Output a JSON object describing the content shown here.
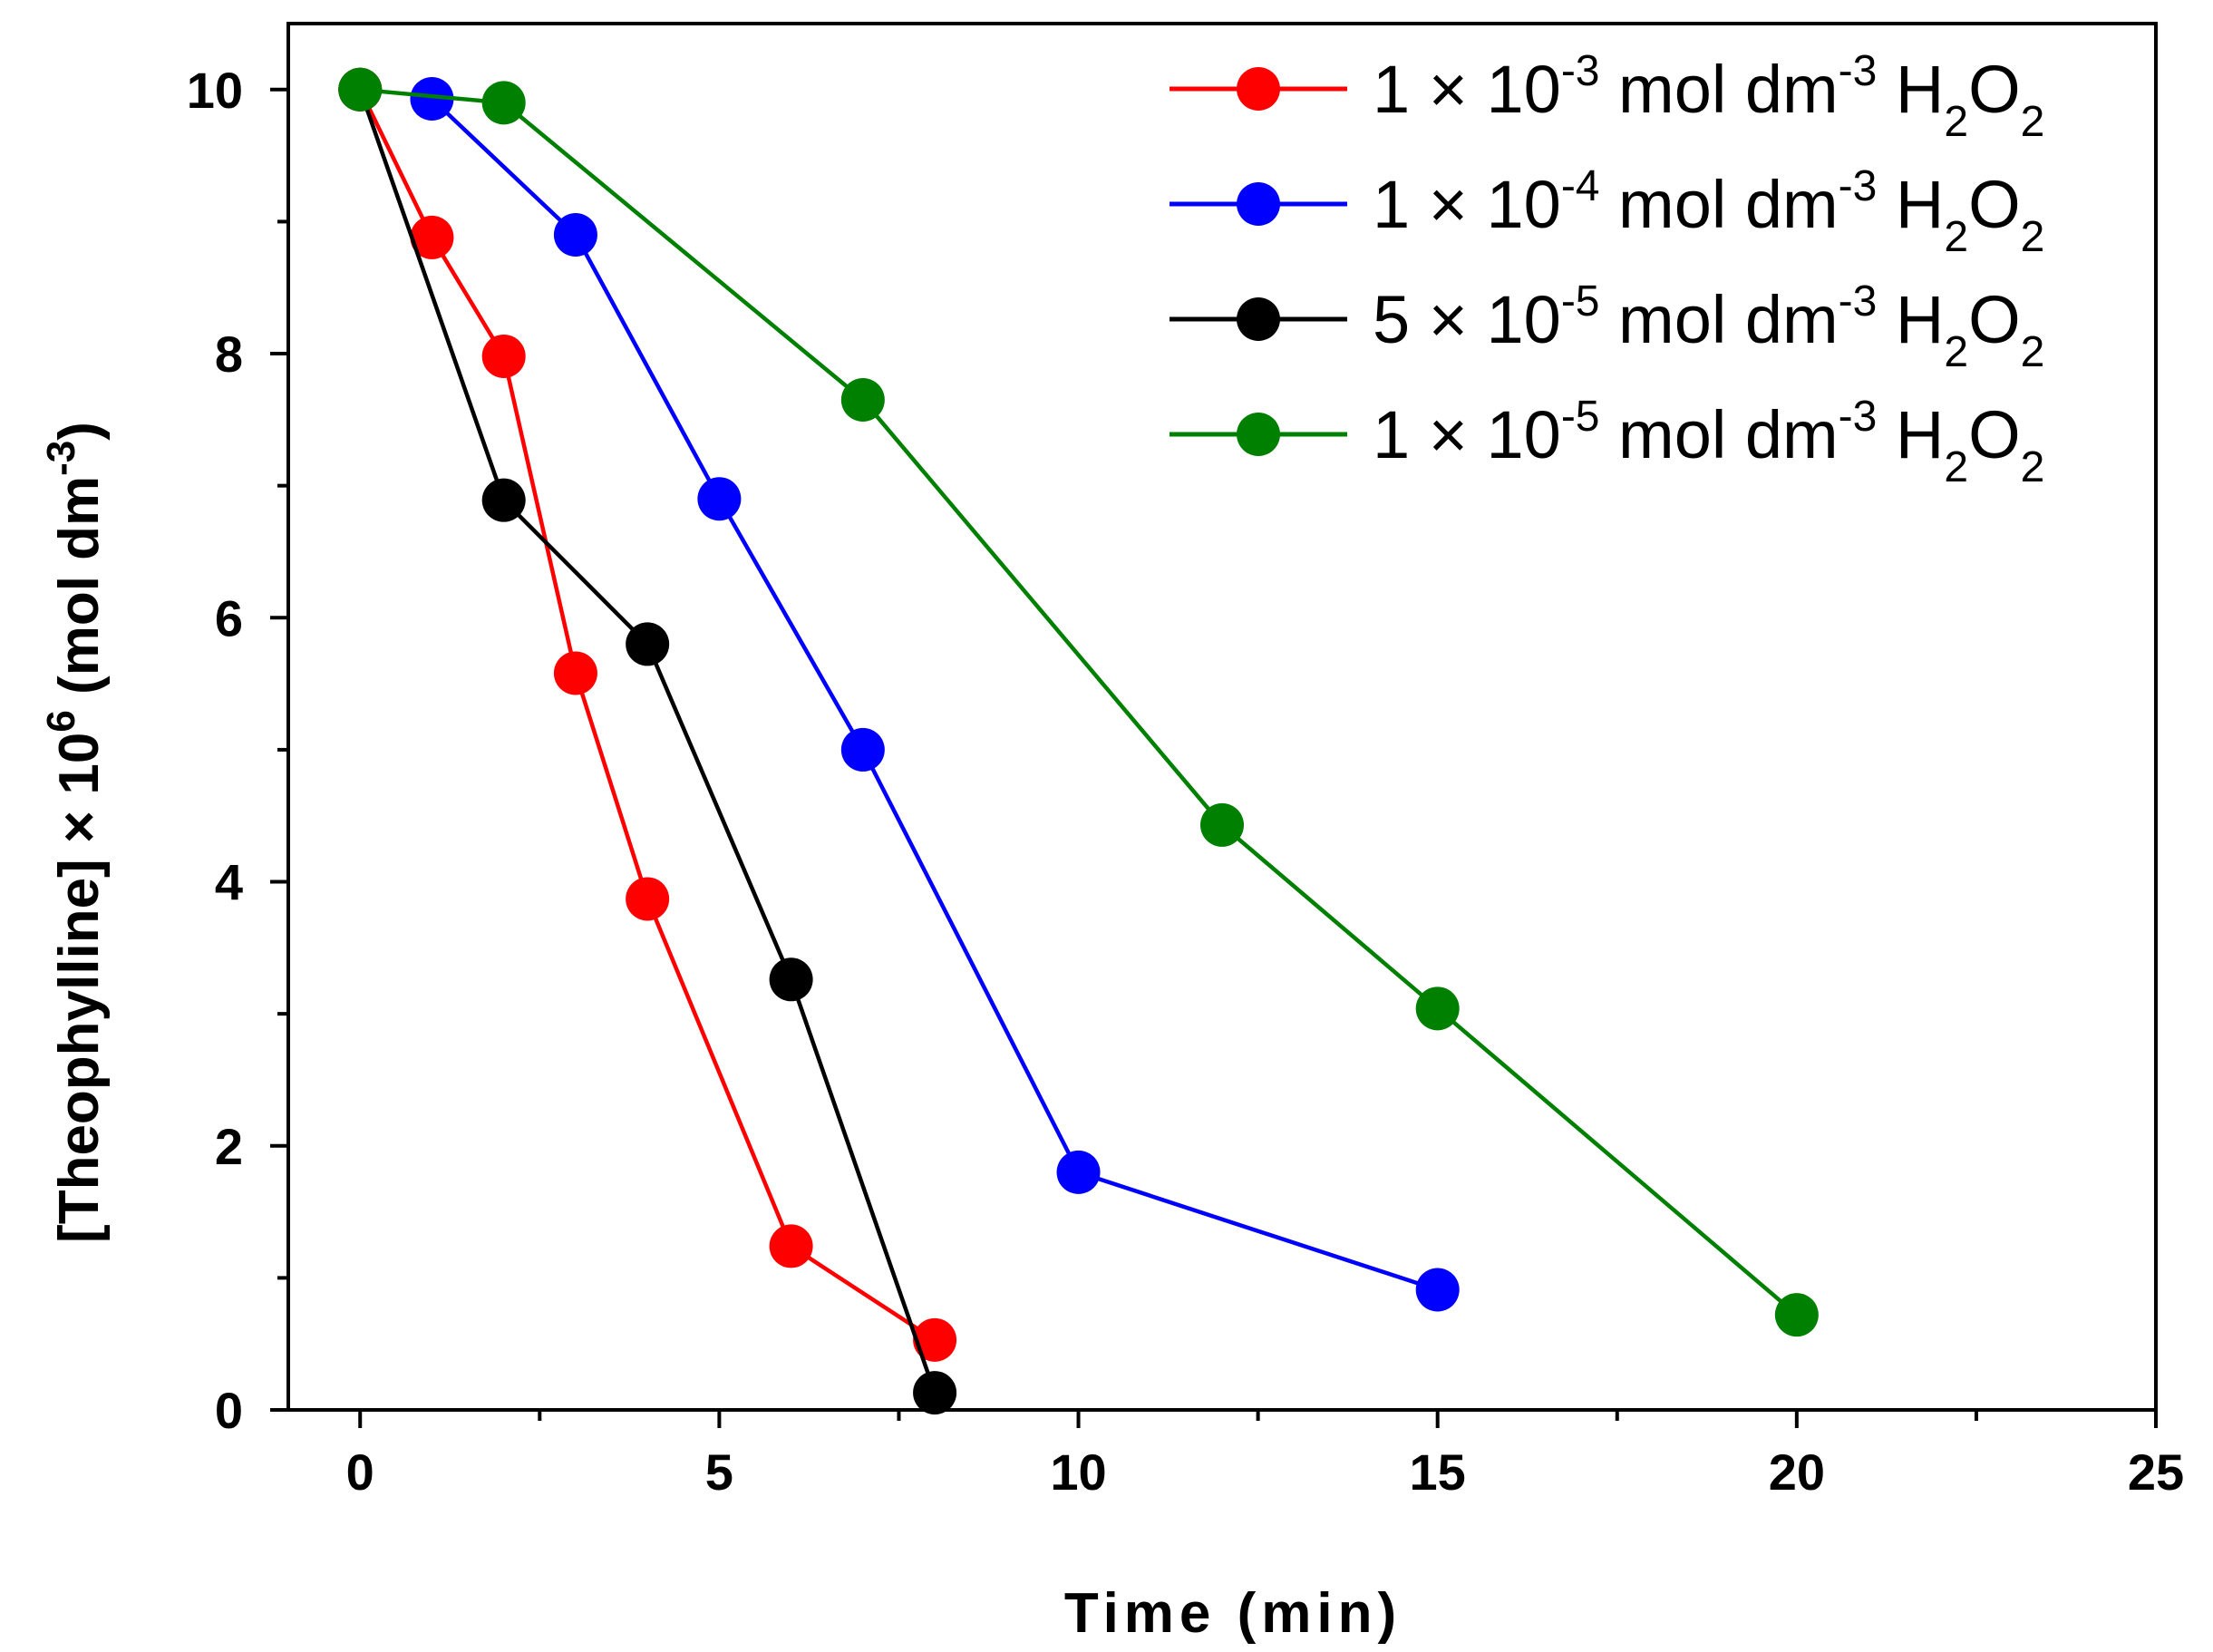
{
  "chart_data": {
    "type": "line",
    "title": "",
    "xlabel": "Time (min)",
    "ylabel": {
      "main": "[Theophylline] × 10",
      "exp": "6",
      "unit_open": " (mol dm",
      "unit_exp": "-3",
      "unit_close": ")"
    },
    "xlim": [
      -1,
      25
    ],
    "ylim": [
      0,
      10.5
    ],
    "x_ticks": [
      0,
      5,
      10,
      15,
      20,
      25
    ],
    "y_ticks": [
      0,
      2,
      4,
      6,
      8,
      10
    ],
    "grid": false,
    "legend_position": "top-right",
    "series": [
      {
        "name": "1 × 10-3 mol dm-3 H2O2",
        "legend": {
          "coef": "1 × 10",
          "exp": "-3",
          "mid": " mol dm",
          "unit_exp": "-3",
          "species": "H",
          "sub1": "2",
          "o": "O",
          "sub2": "2"
        },
        "color": "#ff0000",
        "x": [
          0,
          1,
          2,
          3,
          4,
          6,
          8
        ],
        "y": [
          10.0,
          8.88,
          7.98,
          5.58,
          3.87,
          1.24,
          0.53
        ]
      },
      {
        "name": "1 × 10-4 mol dm-3 H2O2",
        "legend": {
          "coef": "1 × 10",
          "exp": "-4",
          "mid": " mol dm",
          "unit_exp": "-3",
          "species": "H",
          "sub1": "2",
          "o": "O",
          "sub2": "2"
        },
        "color": "#0000ff",
        "x": [
          1,
          3,
          5,
          7,
          10,
          15
        ],
        "y": [
          9.93,
          8.9,
          6.9,
          5.0,
          1.8,
          0.91
        ]
      },
      {
        "name": "5 × 10-5 mol dm-3 H2O2",
        "legend": {
          "coef": "5 × 10",
          "exp": "-5",
          "mid": " mol dm",
          "unit_exp": "-3",
          "species": "H",
          "sub1": "2",
          "o": "O",
          "sub2": "2"
        },
        "color": "#000000",
        "x": [
          0,
          2,
          4,
          6,
          8
        ],
        "y": [
          10.0,
          6.89,
          5.8,
          3.26,
          0.13
        ]
      },
      {
        "name": "1 × 10-5 mol dm-3 H2O2",
        "legend": {
          "coef": "1 × 10",
          "exp": "-5",
          "mid": " mol dm",
          "unit_exp": "-3",
          "species": "H",
          "sub1": "2",
          "o": "O",
          "sub2": "2"
        },
        "color": "#008000",
        "x": [
          0,
          2,
          7,
          12,
          15,
          20
        ],
        "y": [
          10.0,
          9.9,
          7.65,
          4.43,
          3.04,
          0.72
        ]
      }
    ]
  }
}
